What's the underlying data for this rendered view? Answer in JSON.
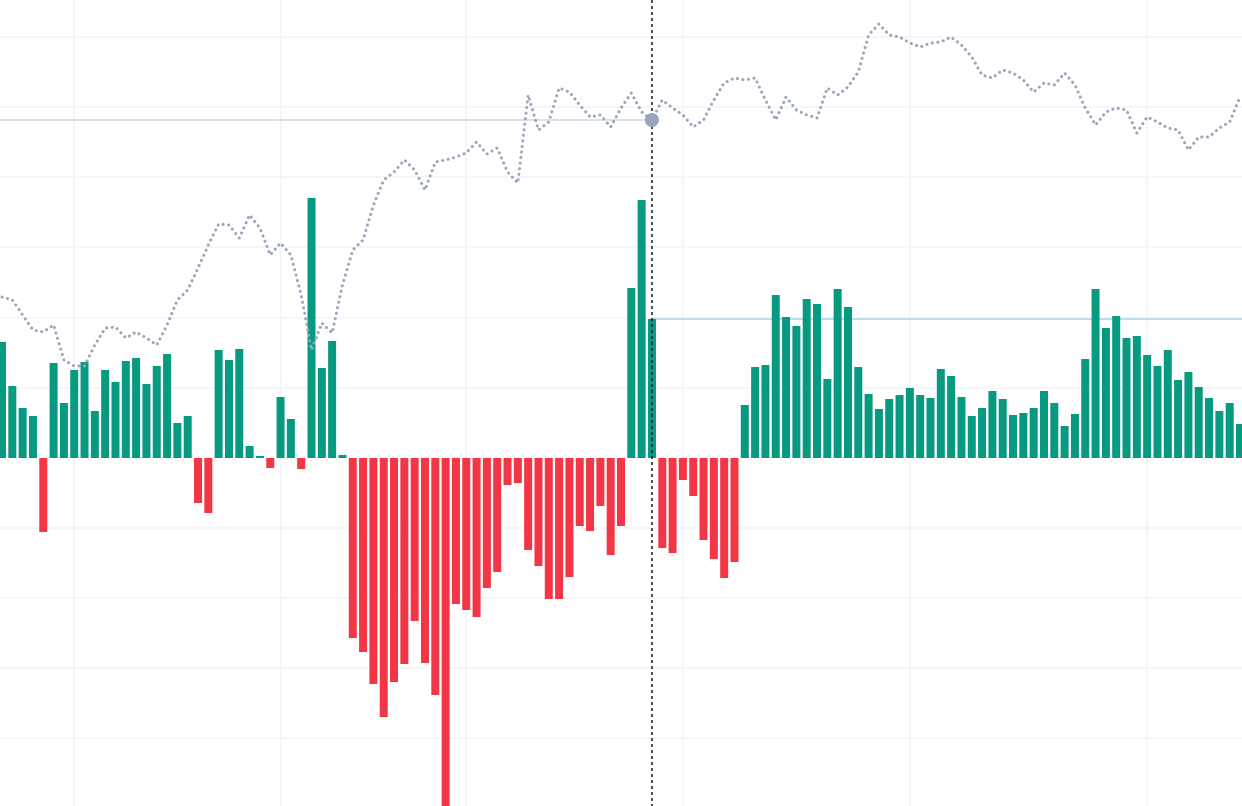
{
  "chart_data": {
    "type": "combo",
    "ylim": [
      -348,
      458
    ],
    "ygrid": [
      421,
      351,
      281,
      211,
      140,
      70,
      -70,
      -140,
      -210,
      -280
    ],
    "xgrid": [
      7,
      27,
      45,
      66,
      88,
      111
    ],
    "grid_color": "#f0f3fa",
    "crosshair_index": 63,
    "series": [
      {
        "type": "bar",
        "positive_color": "#089981",
        "negative_color": "#f23645",
        "values": [
          116,
          72,
          50,
          42,
          -74,
          95,
          55,
          88,
          96,
          47,
          88,
          76,
          97,
          100,
          74,
          92,
          104,
          35,
          42,
          -45,
          -55,
          108,
          98,
          109,
          12,
          2,
          -10,
          61,
          39,
          -11,
          260,
          90,
          117,
          3,
          -180,
          -194,
          -226,
          -259,
          -224,
          -206,
          -163,
          -205,
          -237,
          -348,
          -146,
          -152,
          -159,
          -130,
          -114,
          -27,
          -25,
          -92,
          -108,
          -141,
          -141,
          -119,
          -68,
          -73,
          -48,
          -97,
          -68,
          170,
          258,
          139,
          -90,
          -95,
          -22,
          -38,
          -82,
          -101,
          -120,
          -104,
          53,
          91,
          93,
          163,
          141,
          132,
          159,
          154,
          79,
          169,
          151,
          91,
          64,
          49,
          59,
          63,
          70,
          63,
          60,
          89,
          82,
          61,
          42,
          50,
          67,
          59,
          43,
          45,
          50,
          67,
          55,
          32,
          44,
          99,
          169,
          130,
          142,
          120,
          122,
          103,
          92,
          108,
          78,
          86,
          71,
          60,
          47,
          55,
          34
        ]
      },
      {
        "type": "line",
        "color": "#9ba6bd",
        "values": [
          161,
          158,
          143,
          128,
          126,
          133,
          98,
          92,
          92,
          113,
          130,
          131,
          120,
          126,
          120,
          113,
          133,
          158,
          168,
          190,
          213,
          234,
          233,
          220,
          243,
          230,
          203,
          215,
          203,
          163,
          108,
          135,
          125,
          173,
          208,
          218,
          253,
          278,
          286,
          298,
          288,
          268,
          296,
          298,
          301,
          305,
          316,
          304,
          310,
          286,
          275,
          363,
          328,
          336,
          370,
          366,
          353,
          341,
          343,
          331,
          350,
          365,
          346,
          338,
          358,
          350,
          343,
          331,
          338,
          358,
          375,
          380,
          378,
          380,
          358,
          338,
          361,
          348,
          343,
          340,
          370,
          363,
          371,
          386,
          423,
          434,
          423,
          421,
          415,
          411,
          415,
          416,
          421,
          413,
          401,
          383,
          380,
          388,
          385,
          378,
          366,
          375,
          373,
          385,
          373,
          350,
          333,
          346,
          350,
          348,
          325,
          341,
          336,
          330,
          328,
          308,
          321,
          321,
          330,
          336,
          361
        ]
      }
    ]
  }
}
